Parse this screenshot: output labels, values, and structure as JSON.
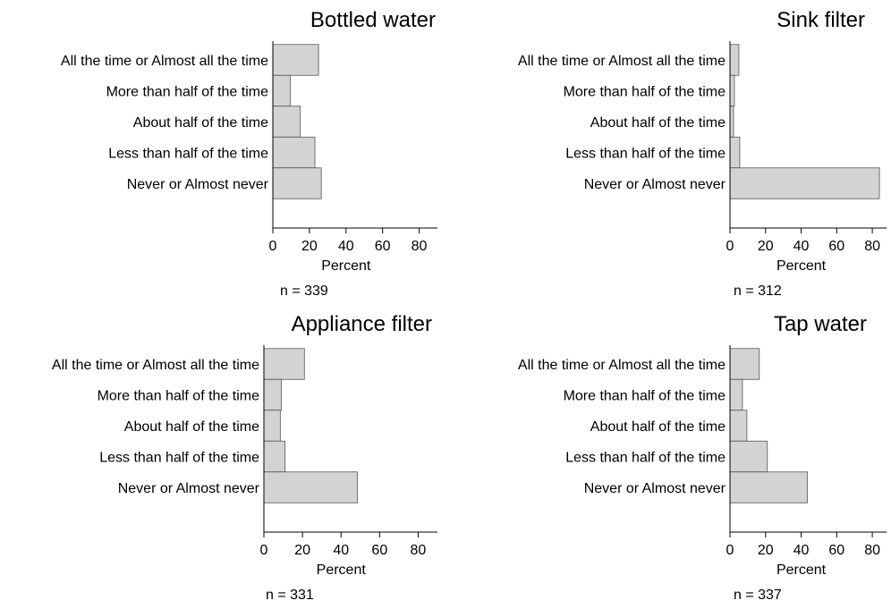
{
  "chart_data": [
    {
      "type": "bar",
      "orientation": "horizontal",
      "title": "Bottled water",
      "xlabel": "Percent",
      "xlim": [
        0,
        90
      ],
      "xticks": [
        "0",
        "20",
        "40",
        "60",
        "80"
      ],
      "categories": [
        "All the time or Almost all the time",
        "More than half of the time",
        "About half of the time",
        "Less than half of the time",
        "Never or Almost never"
      ],
      "values": [
        25,
        9.5,
        15,
        23,
        26.5
      ],
      "note": "n = 339"
    },
    {
      "type": "bar",
      "orientation": "horizontal",
      "title": "Sink filter",
      "xlabel": "Percent",
      "xlim": [
        0,
        88
      ],
      "xticks": [
        "0",
        "20",
        "40",
        "60",
        "80"
      ],
      "categories": [
        "All the time or Almost all the time",
        "More than half of the time",
        "About half of the time",
        "Less than half of the time",
        "Never or Almost never"
      ],
      "values": [
        5,
        2.5,
        2,
        5.5,
        84
      ],
      "note": "n = 312"
    },
    {
      "type": "bar",
      "orientation": "horizontal",
      "title": "Appliance filter",
      "xlabel": "Percent",
      "xlim": [
        0,
        90
      ],
      "xticks": [
        "0",
        "20",
        "40",
        "60",
        "80"
      ],
      "categories": [
        "All the time or Almost all the time",
        "More than half of the time",
        "About half of the time",
        "Less than half of the time",
        "Never or Almost never"
      ],
      "values": [
        21,
        9,
        8.5,
        11,
        48.5
      ],
      "note": "n = 331"
    },
    {
      "type": "bar",
      "orientation": "horizontal",
      "title": "Tap water",
      "xlabel": "Percent",
      "xlim": [
        0,
        88
      ],
      "xticks": [
        "0",
        "20",
        "40",
        "60",
        "80"
      ],
      "categories": [
        "All the time or Almost all the time",
        "More than half of the time",
        "About half of the time",
        "Less than half of the time",
        "Never or Almost never"
      ],
      "values": [
        16.5,
        7,
        9.5,
        21,
        43.5
      ],
      "note": "n = 337"
    }
  ]
}
